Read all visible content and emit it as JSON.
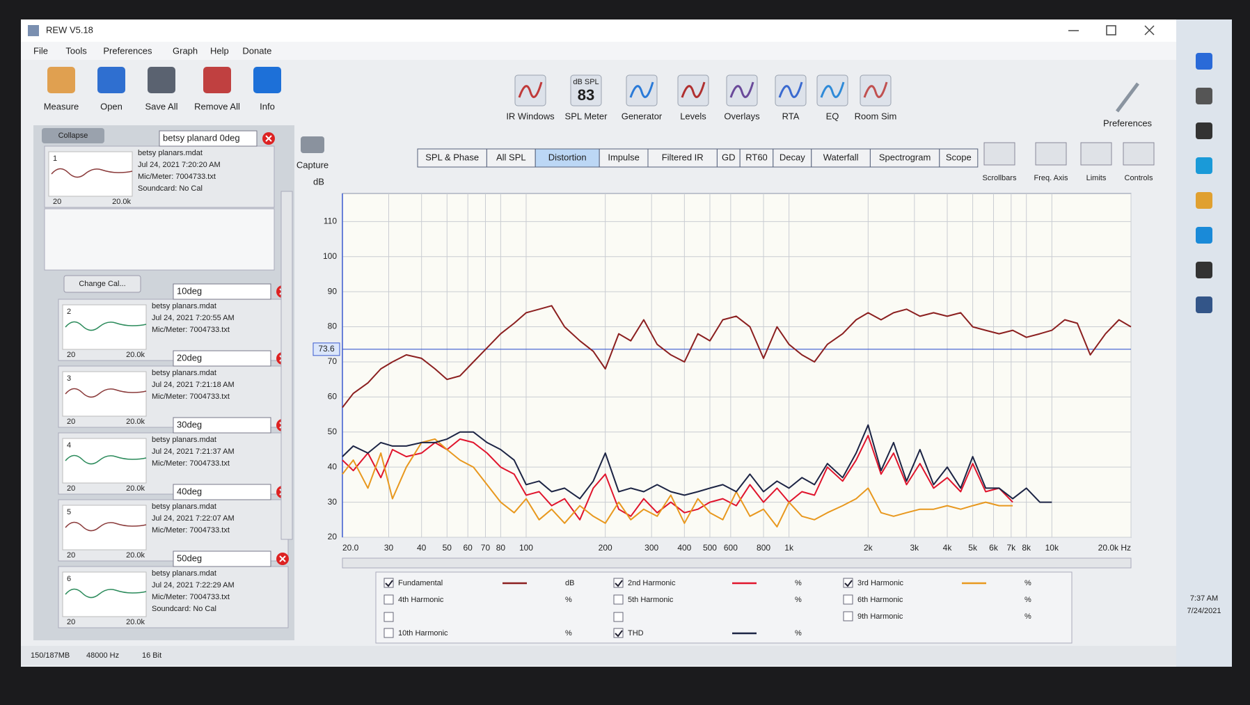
{
  "window": {
    "title": "REW V5.18",
    "menu": [
      "File",
      "Tools",
      "Preferences",
      "Graph",
      "Help",
      "Donate"
    ]
  },
  "toolbar": {
    "left": [
      "Measure",
      "Open",
      "Save All",
      "Remove All",
      "Info"
    ],
    "center": [
      "IR Windows",
      "SPL Meter",
      "Generator",
      "Levels",
      "Overlays",
      "RTA",
      "EQ",
      "Room Sim"
    ],
    "spl_reading": {
      "unit": "dB SPL",
      "value": "83"
    },
    "right": [
      "Preferences"
    ]
  },
  "measurements_panel": {
    "collapse": "Collapse",
    "change_cal": "Change Cal...",
    "items": [
      {
        "index": "1",
        "name": "betsy planard 0deg",
        "file": "betsy planars.mdat",
        "date": "Jul 24, 2021 7:20:20 AM",
        "mic": "Mic/Meter: 7004733.txt",
        "soundcard": "Soundcard: No Cal",
        "thumb_axis": [
          "20",
          "20.0k"
        ]
      },
      {
        "index": "2",
        "name": "10deg",
        "file": "betsy planars.mdat",
        "date": "Jul 24, 2021 7:20:55 AM",
        "mic": "Mic/Meter: 7004733.txt",
        "thumb_axis": [
          "20",
          "20.0k"
        ]
      },
      {
        "index": "3",
        "name": "20deg",
        "file": "betsy planars.mdat",
        "date": "Jul 24, 2021 7:21:18 AM",
        "mic": "Mic/Meter: 7004733.txt",
        "thumb_axis": [
          "20",
          "20.0k"
        ]
      },
      {
        "index": "4",
        "name": "30deg",
        "file": "betsy planars.mdat",
        "date": "Jul 24, 2021 7:21:37 AM",
        "mic": "Mic/Meter: 7004733.txt",
        "thumb_axis": [
          "20",
          "20.0k"
        ]
      },
      {
        "index": "5",
        "name": "40deg",
        "file": "betsy planars.mdat",
        "date": "Jul 24, 2021 7:22:07 AM",
        "mic": "Mic/Meter: 7004733.txt",
        "thumb_axis": [
          "20",
          "20.0k"
        ]
      },
      {
        "index": "6",
        "name": "50deg",
        "file": "betsy planars.mdat",
        "date": "Jul 24, 2021 7:22:29 AM",
        "mic": "Mic/Meter: 7004733.txt",
        "soundcard": "Soundcard: No Cal",
        "thumb_axis": [
          "20",
          "20.0k"
        ]
      }
    ]
  },
  "graph_tabs": {
    "tabs": [
      "SPL & Phase",
      "All SPL",
      "Distortion",
      "Impulse",
      "Filtered IR",
      "GD",
      "RT60",
      "Decay",
      "Waterfall",
      "Spectrogram",
      "Scope"
    ],
    "active": 2
  },
  "graph_controls": [
    "Scrollbars",
    "Freq. Axis",
    "Limits",
    "Controls"
  ],
  "capture": "Capture",
  "chart_data": {
    "type": "line",
    "ylabel": "dB",
    "log_x": true,
    "grid": true,
    "x": [
      20,
      22,
      25,
      28,
      31,
      35,
      40,
      45,
      50,
      56,
      63,
      71,
      80,
      90,
      100,
      112,
      125,
      140,
      160,
      180,
      200,
      225,
      250,
      280,
      315,
      355,
      400,
      450,
      500,
      560,
      630,
      710,
      800,
      900,
      1000,
      1120,
      1250,
      1400,
      1600,
      1800,
      2000,
      2240,
      2500,
      2800,
      3150,
      3550,
      4000,
      4500,
      5000,
      5600,
      6300,
      7100,
      8000,
      9000,
      10000,
      11200,
      12500,
      14000,
      16000,
      18000,
      20000
    ],
    "xlim": [
      20,
      20000
    ],
    "xticks": [
      {
        "value": 20,
        "label": "20.0"
      },
      30,
      40,
      50,
      60,
      70,
      80,
      100,
      200,
      300,
      400,
      500,
      600,
      800,
      {
        "value": 1000,
        "label": "1k"
      },
      {
        "value": 2000,
        "label": "2k"
      },
      {
        "value": 3000,
        "label": "3k"
      },
      {
        "value": 4000,
        "label": "4k"
      },
      {
        "value": 5000,
        "label": "5k"
      },
      {
        "value": 6000,
        "label": "6k"
      },
      {
        "value": 7000,
        "label": "7k"
      },
      {
        "value": 8000,
        "label": "8k"
      },
      {
        "value": 10000,
        "label": "10k"
      },
      {
        "value": 20000,
        "label": "20.0k Hz"
      }
    ],
    "ylim": [
      20,
      118
    ],
    "yticks": [
      20,
      30,
      40,
      50,
      60,
      70,
      80,
      90,
      100,
      110
    ],
    "cursor_value": 73.6,
    "series": [
      {
        "name": "Fundamental",
        "unit": "dB",
        "color": "#8b1f1f",
        "checked": true,
        "values": [
          57,
          61,
          64,
          68,
          70,
          72,
          71,
          68,
          65,
          66,
          70,
          74,
          78,
          81,
          84,
          85,
          86,
          80,
          76,
          73,
          68,
          78,
          76,
          82,
          75,
          72,
          70,
          78,
          76,
          82,
          83,
          80,
          71,
          80,
          75,
          72,
          70,
          75,
          78,
          82,
          84,
          82,
          84,
          85,
          83,
          84,
          83,
          84,
          80,
          79,
          78,
          79,
          77,
          78,
          79,
          82,
          81,
          72,
          78,
          82,
          80
        ]
      },
      {
        "name": "2nd Harmonic",
        "unit": "%",
        "color": "#e0142c",
        "checked": true,
        "values": [
          42,
          39,
          44,
          37,
          45,
          43,
          44,
          47,
          45,
          48,
          47,
          44,
          40,
          38,
          32,
          33,
          29,
          31,
          25,
          34,
          38,
          28,
          26,
          31,
          27,
          30,
          27,
          28,
          30,
          31,
          29,
          35,
          30,
          34,
          30,
          33,
          32,
          40,
          36,
          42,
          49,
          38,
          44,
          35,
          41,
          34,
          37,
          33,
          41,
          33,
          34,
          30,
          null,
          null,
          null,
          null,
          null,
          null,
          null,
          null,
          null
        ]
      },
      {
        "name": "3rd Harmonic",
        "unit": "%",
        "color": "#e8981e",
        "checked": true,
        "values": [
          38,
          42,
          34,
          44,
          31,
          40,
          47,
          48,
          45,
          42,
          40,
          35,
          30,
          27,
          31,
          25,
          28,
          24,
          29,
          26,
          24,
          30,
          25,
          28,
          26,
          32,
          24,
          31,
          27,
          25,
          33,
          26,
          28,
          23,
          30,
          26,
          25,
          27,
          29,
          31,
          34,
          27,
          26,
          27,
          28,
          28,
          29,
          28,
          29,
          30,
          29,
          29,
          null,
          null,
          null,
          null,
          null,
          null,
          null,
          null,
          null
        ]
      },
      {
        "name": "4th Harmonic",
        "unit": "%",
        "color": "#d9a23a",
        "checked": false
      },
      {
        "name": "5th Harmonic",
        "unit": "%",
        "color": "#5a8fd0",
        "checked": false
      },
      {
        "name": "6th Harmonic",
        "unit": "%",
        "color": "#4a7fc8",
        "checked": false
      },
      {
        "name": "9th Harmonic",
        "unit": "%",
        "color": "#3a78c0",
        "checked": false
      },
      {
        "name": "10th Harmonic",
        "unit": "%",
        "color": "#9a6a3a",
        "checked": false
      },
      {
        "name": "THD",
        "unit": "%",
        "color": "#1c2444",
        "checked": true,
        "values": [
          43,
          46,
          44,
          47,
          46,
          46,
          47,
          47,
          48,
          50,
          50,
          47,
          45,
          42,
          35,
          36,
          33,
          34,
          31,
          36,
          44,
          33,
          34,
          33,
          35,
          33,
          32,
          33,
          34,
          35,
          33,
          38,
          33,
          36,
          34,
          37,
          35,
          41,
          37,
          44,
          52,
          39,
          47,
          36,
          45,
          35,
          40,
          34,
          43,
          34,
          34,
          31,
          34,
          30,
          30,
          null,
          null,
          null,
          null,
          null,
          null
        ]
      }
    ]
  },
  "status_bar": [
    "150/187MB",
    "48000 Hz",
    "16 Bit"
  ],
  "taskbar": {
    "time": "7:37 AM",
    "date": "7/24/2021"
  }
}
